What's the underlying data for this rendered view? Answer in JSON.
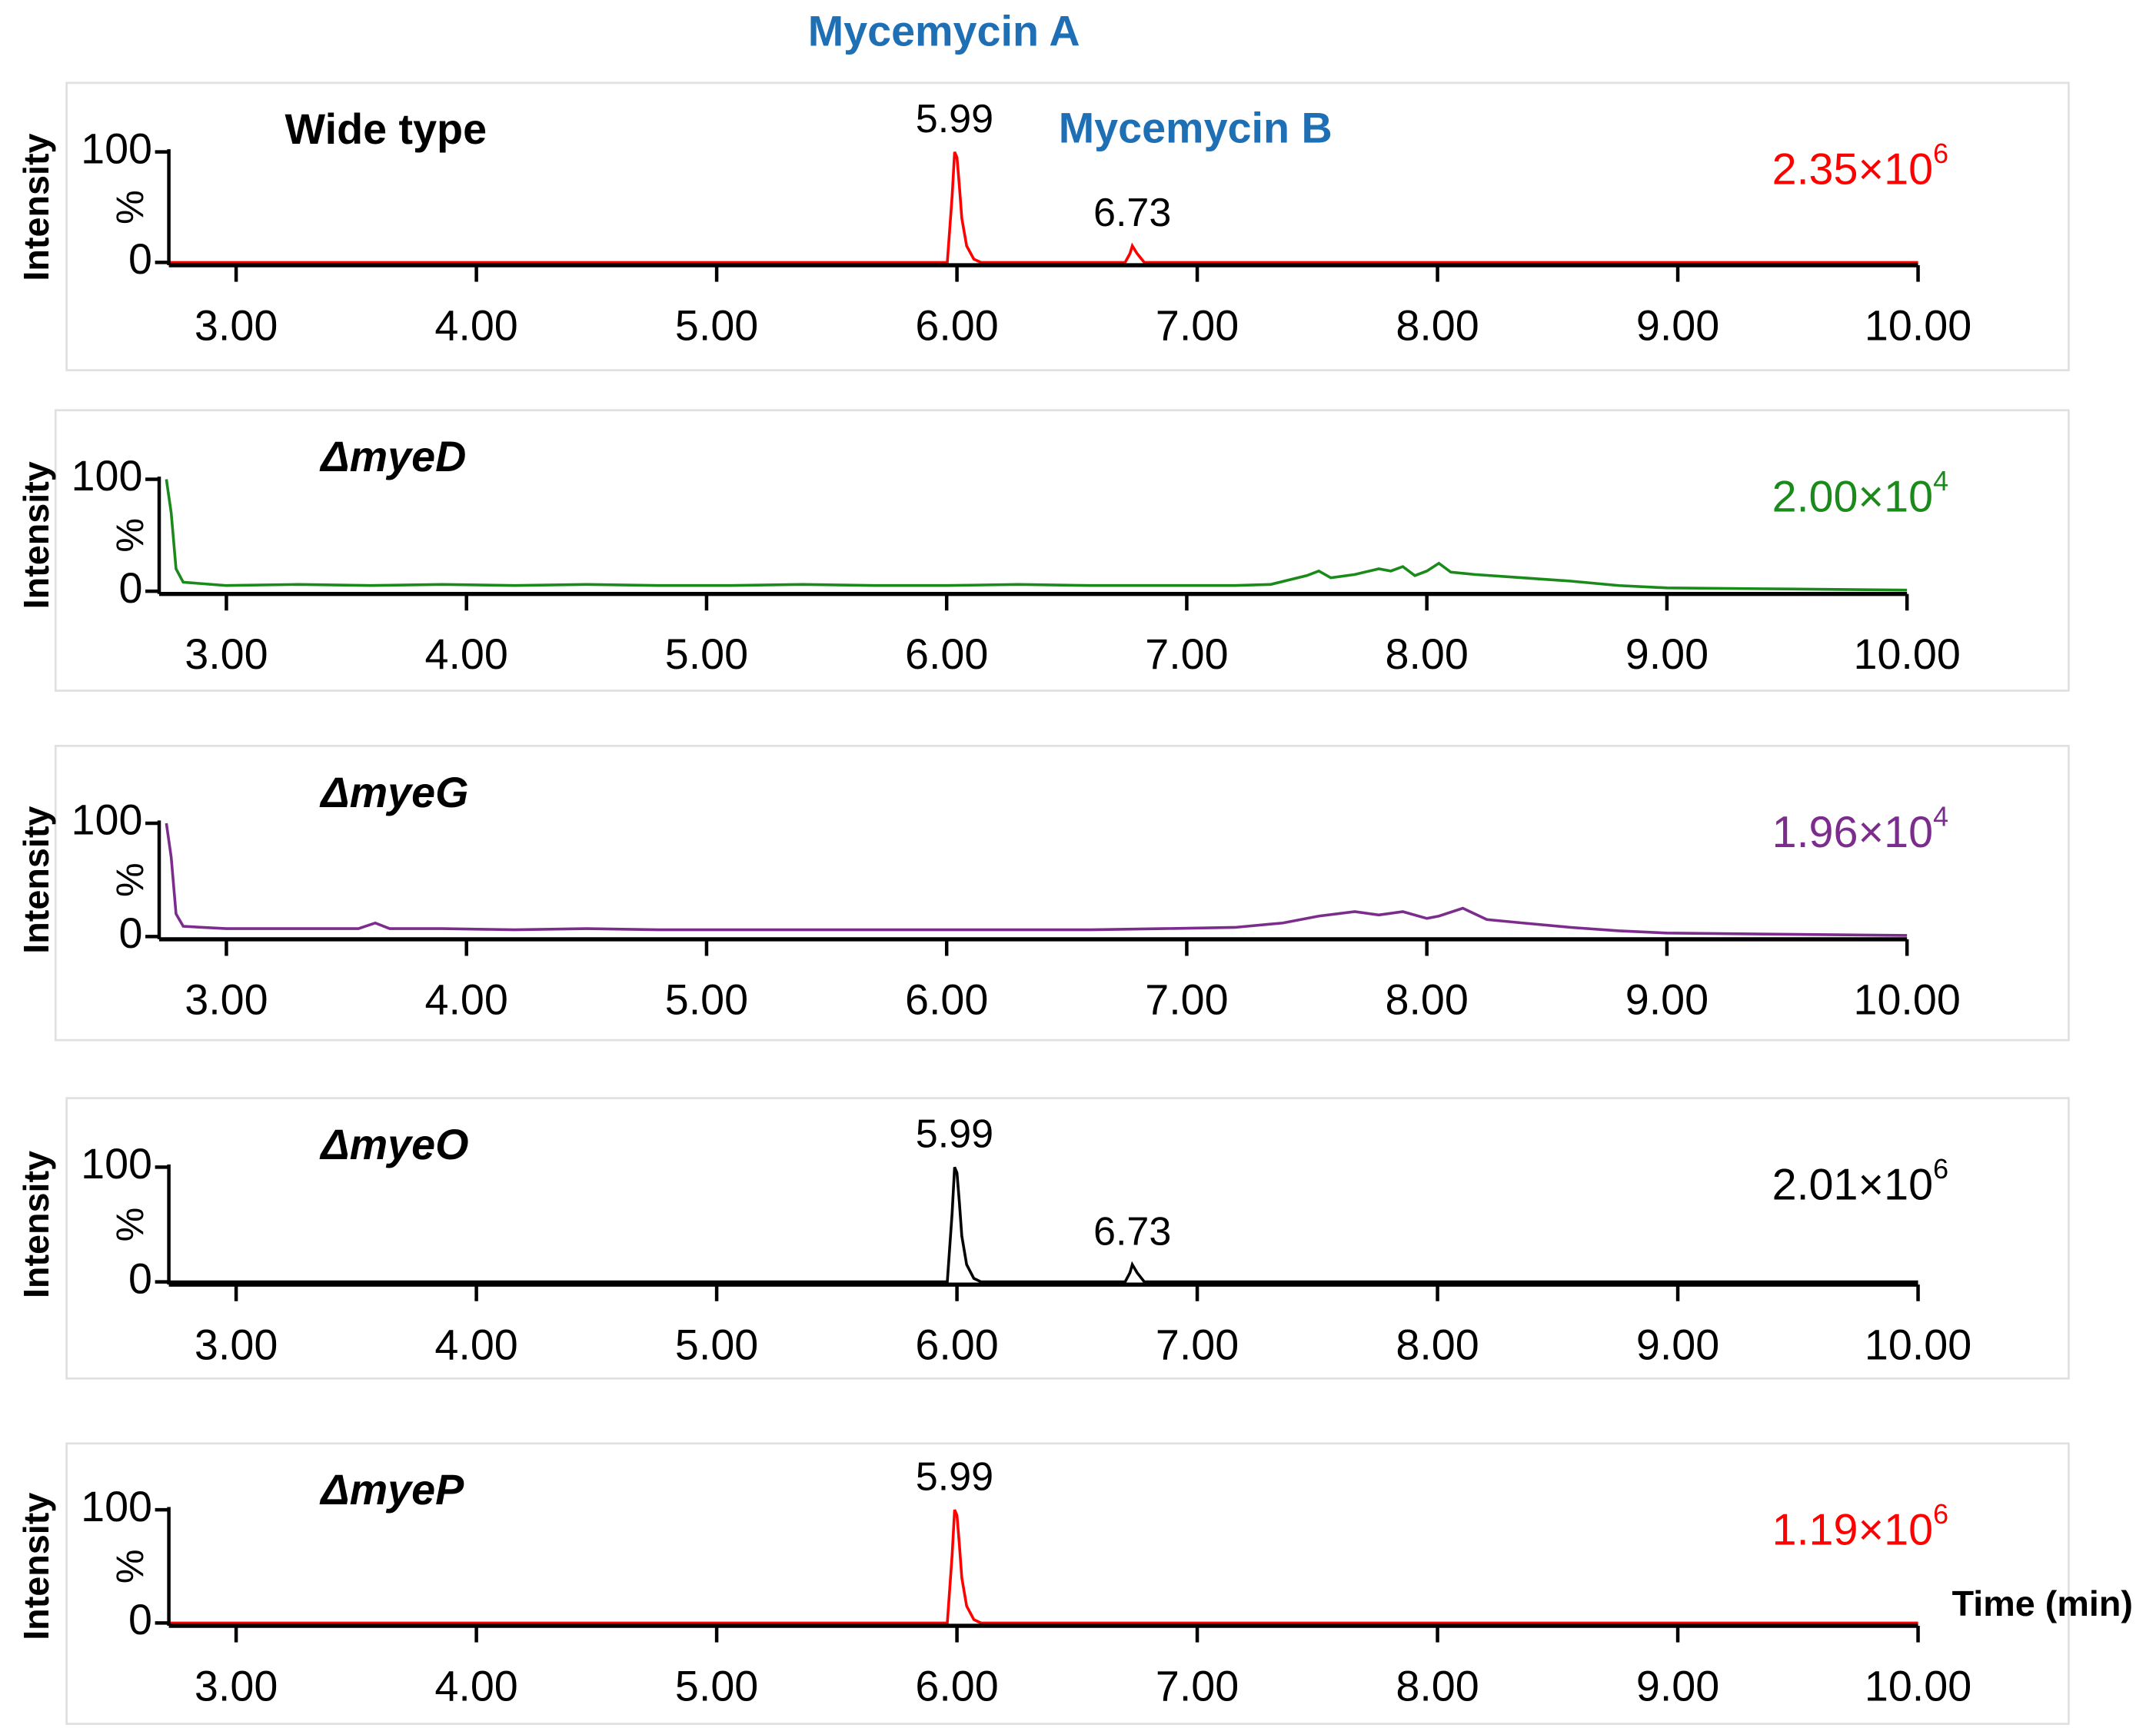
{
  "chart_data": [
    {
      "type": "line",
      "title": "Wide type",
      "ylabel": "Intensity",
      "yunit": "%",
      "color": "#ff0000",
      "annotations": [
        "Mycemycin A",
        "Mycemycin B"
      ],
      "x": [
        2.72,
        5.96,
        5.98,
        5.99,
        6.0,
        6.01,
        6.02,
        6.04,
        6.07,
        6.1,
        6.7,
        6.72,
        6.73,
        6.75,
        6.78,
        10.0
      ],
      "values": [
        0,
        0,
        60,
        100,
        95,
        70,
        40,
        15,
        3,
        0,
        0,
        8,
        15,
        8,
        0,
        0
      ],
      "peak_labels": [
        5.99,
        6.73
      ],
      "intensity_scale": {
        "coefficient": "2.35",
        "sign": "×",
        "base": "10",
        "exponent": "6"
      },
      "xlim": [
        2.72,
        10.0
      ],
      "ylim": [
        0,
        100
      ],
      "xticks": [
        {
          "value": 3,
          "label": "3.00"
        },
        {
          "value": 4,
          "label": "4.00"
        },
        {
          "value": 5,
          "label": "5.00"
        },
        {
          "value": 6,
          "label": "6.00"
        },
        {
          "value": 7,
          "label": "7.00"
        },
        {
          "value": 8,
          "label": "8.00"
        },
        {
          "value": 9,
          "label": "9.00"
        },
        {
          "value": 10,
          "label": "10.00"
        }
      ],
      "yticks": [
        0,
        100
      ]
    },
    {
      "type": "line",
      "title": "ΔmyeD",
      "ylabel": "Intensity",
      "yunit": "%",
      "color": "#1a8a1a",
      "x": [
        2.75,
        2.77,
        2.79,
        2.82,
        3.0,
        3.3,
        3.6,
        3.9,
        4.2,
        4.5,
        4.8,
        5.1,
        5.4,
        5.7,
        6.0,
        6.3,
        6.6,
        6.9,
        7.2,
        7.35,
        7.5,
        7.55,
        7.6,
        7.7,
        7.8,
        7.85,
        7.9,
        7.95,
        8.0,
        8.05,
        8.1,
        8.2,
        8.4,
        8.6,
        8.8,
        9.0,
        9.5,
        10.0
      ],
      "values": [
        100,
        70,
        20,
        8,
        5,
        6,
        5,
        6,
        5,
        6,
        5,
        5,
        6,
        5,
        5,
        6,
        5,
        5,
        5,
        6,
        14,
        18,
        12,
        15,
        20,
        18,
        22,
        14,
        18,
        25,
        17,
        15,
        12,
        9,
        5,
        3,
        2,
        1
      ],
      "intensity_scale": {
        "coefficient": "2.00",
        "sign": "×",
        "base": "10",
        "exponent": "4"
      },
      "xlim": [
        2.72,
        10.0
      ],
      "ylim": [
        0,
        100
      ],
      "xticks": [
        {
          "value": 3,
          "label": "3.00"
        },
        {
          "value": 4,
          "label": "4.00"
        },
        {
          "value": 5,
          "label": "5.00"
        },
        {
          "value": 6,
          "label": "6.00"
        },
        {
          "value": 7,
          "label": "7.00"
        },
        {
          "value": 8,
          "label": "8.00"
        },
        {
          "value": 9,
          "label": "9.00"
        },
        {
          "value": 10,
          "label": "10.00"
        }
      ],
      "yticks": [
        0,
        100
      ]
    },
    {
      "type": "line",
      "title": "ΔmyeG",
      "ylabel": "Intensity",
      "yunit": "%",
      "color": "#7b2c8c",
      "x": [
        2.75,
        2.77,
        2.79,
        2.82,
        3.0,
        3.3,
        3.55,
        3.62,
        3.68,
        3.9,
        4.2,
        4.5,
        4.8,
        5.1,
        5.4,
        5.7,
        6.0,
        6.3,
        6.6,
        6.9,
        7.2,
        7.4,
        7.55,
        7.7,
        7.8,
        7.9,
        8.0,
        8.05,
        8.15,
        8.25,
        8.4,
        8.6,
        8.8,
        9.0,
        9.5,
        10.0
      ],
      "values": [
        100,
        70,
        20,
        9,
        7,
        7,
        7,
        12,
        7,
        7,
        6,
        7,
        6,
        6,
        6,
        6,
        6,
        6,
        6,
        7,
        8,
        12,
        18,
        22,
        19,
        22,
        16,
        18,
        25,
        15,
        12,
        8,
        5,
        3,
        2,
        1
      ],
      "intensity_scale": {
        "coefficient": "1.96",
        "sign": "×",
        "base": "10",
        "exponent": "4"
      },
      "xlim": [
        2.72,
        10.0
      ],
      "ylim": [
        0,
        100
      ],
      "xticks": [
        {
          "value": 3,
          "label": "3.00"
        },
        {
          "value": 4,
          "label": "4.00"
        },
        {
          "value": 5,
          "label": "5.00"
        },
        {
          "value": 6,
          "label": "6.00"
        },
        {
          "value": 7,
          "label": "7.00"
        },
        {
          "value": 8,
          "label": "8.00"
        },
        {
          "value": 9,
          "label": "9.00"
        },
        {
          "value": 10,
          "label": "10.00"
        }
      ],
      "yticks": [
        0,
        100
      ]
    },
    {
      "type": "line",
      "title": "ΔmyeO",
      "ylabel": "Intensity",
      "yunit": "%",
      "color": "#000000",
      "x": [
        2.72,
        5.96,
        5.98,
        5.99,
        6.0,
        6.01,
        6.02,
        6.04,
        6.07,
        6.1,
        6.7,
        6.72,
        6.73,
        6.75,
        6.78,
        10.0
      ],
      "values": [
        0,
        0,
        60,
        100,
        95,
        70,
        40,
        15,
        3,
        0,
        0,
        8,
        15,
        8,
        0,
        0
      ],
      "peak_labels": [
        5.99,
        6.73
      ],
      "intensity_scale": {
        "coefficient": "2.01",
        "sign": "×",
        "base": "10",
        "exponent": "6"
      },
      "xlim": [
        2.72,
        10.0
      ],
      "ylim": [
        0,
        100
      ],
      "xticks": [
        {
          "value": 3,
          "label": "3.00"
        },
        {
          "value": 4,
          "label": "4.00"
        },
        {
          "value": 5,
          "label": "5.00"
        },
        {
          "value": 6,
          "label": "6.00"
        },
        {
          "value": 7,
          "label": "7.00"
        },
        {
          "value": 8,
          "label": "8.00"
        },
        {
          "value": 9,
          "label": "9.00"
        },
        {
          "value": 10,
          "label": "10.00"
        }
      ],
      "yticks": [
        0,
        100
      ]
    },
    {
      "type": "line",
      "title": "ΔmyeP",
      "ylabel": "Intensity",
      "yunit": "%",
      "color": "#ff0000",
      "xlabel": "Time (min)",
      "x": [
        2.72,
        5.96,
        5.98,
        5.99,
        6.0,
        6.01,
        6.02,
        6.04,
        6.07,
        6.1,
        10.0
      ],
      "values": [
        0,
        0,
        60,
        100,
        95,
        70,
        40,
        15,
        3,
        0,
        0
      ],
      "peak_labels": [
        5.99
      ],
      "intensity_scale": {
        "coefficient": "1.19",
        "sign": "×",
        "base": "10",
        "exponent": "6"
      },
      "xlim": [
        2.72,
        10.0
      ],
      "ylim": [
        0,
        100
      ],
      "xticks": [
        {
          "value": 3,
          "label": "3.00"
        },
        {
          "value": 4,
          "label": "4.00"
        },
        {
          "value": 5,
          "label": "5.00"
        },
        {
          "value": 6,
          "label": "6.00"
        },
        {
          "value": 7,
          "label": "7.00"
        },
        {
          "value": 8,
          "label": "8.00"
        },
        {
          "value": 9,
          "label": "9.00"
        },
        {
          "value": 10,
          "label": "10.00"
        }
      ],
      "yticks": [
        0,
        100
      ]
    }
  ]
}
